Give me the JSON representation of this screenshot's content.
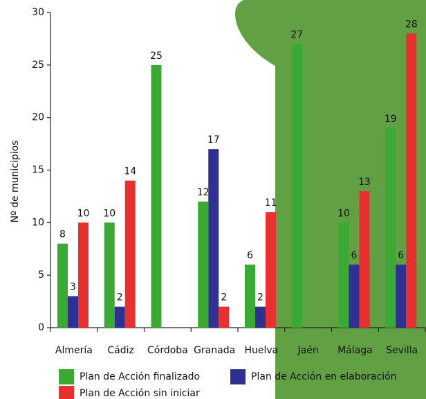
{
  "chart_data": {
    "type": "bar",
    "y_label": "Nº de municipios",
    "categories": [
      "Almería",
      "Cádiz",
      "Córdoba",
      "Granada",
      "Huelva",
      "Jaén",
      "Málaga",
      "Sevilla"
    ],
    "series": [
      {
        "name": "Plan de Acción finalizado",
        "color": "#3aaa35",
        "values": [
          8,
          10,
          25,
          12,
          6,
          27,
          10,
          19
        ]
      },
      {
        "name": "Plan de Acción en elaboración",
        "color": "#2e3192",
        "values": [
          3,
          2,
          null,
          17,
          2,
          null,
          6,
          6
        ]
      },
      {
        "name": "Plan de Acción sin iniciar",
        "color": "#e8312f",
        "values": [
          10,
          14,
          null,
          2,
          11,
          null,
          13,
          28
        ]
      }
    ],
    "ylim": [
      0,
      30
    ],
    "yticks": [
      0,
      5,
      10,
      15,
      20,
      25,
      30
    ],
    "grid": false
  }
}
